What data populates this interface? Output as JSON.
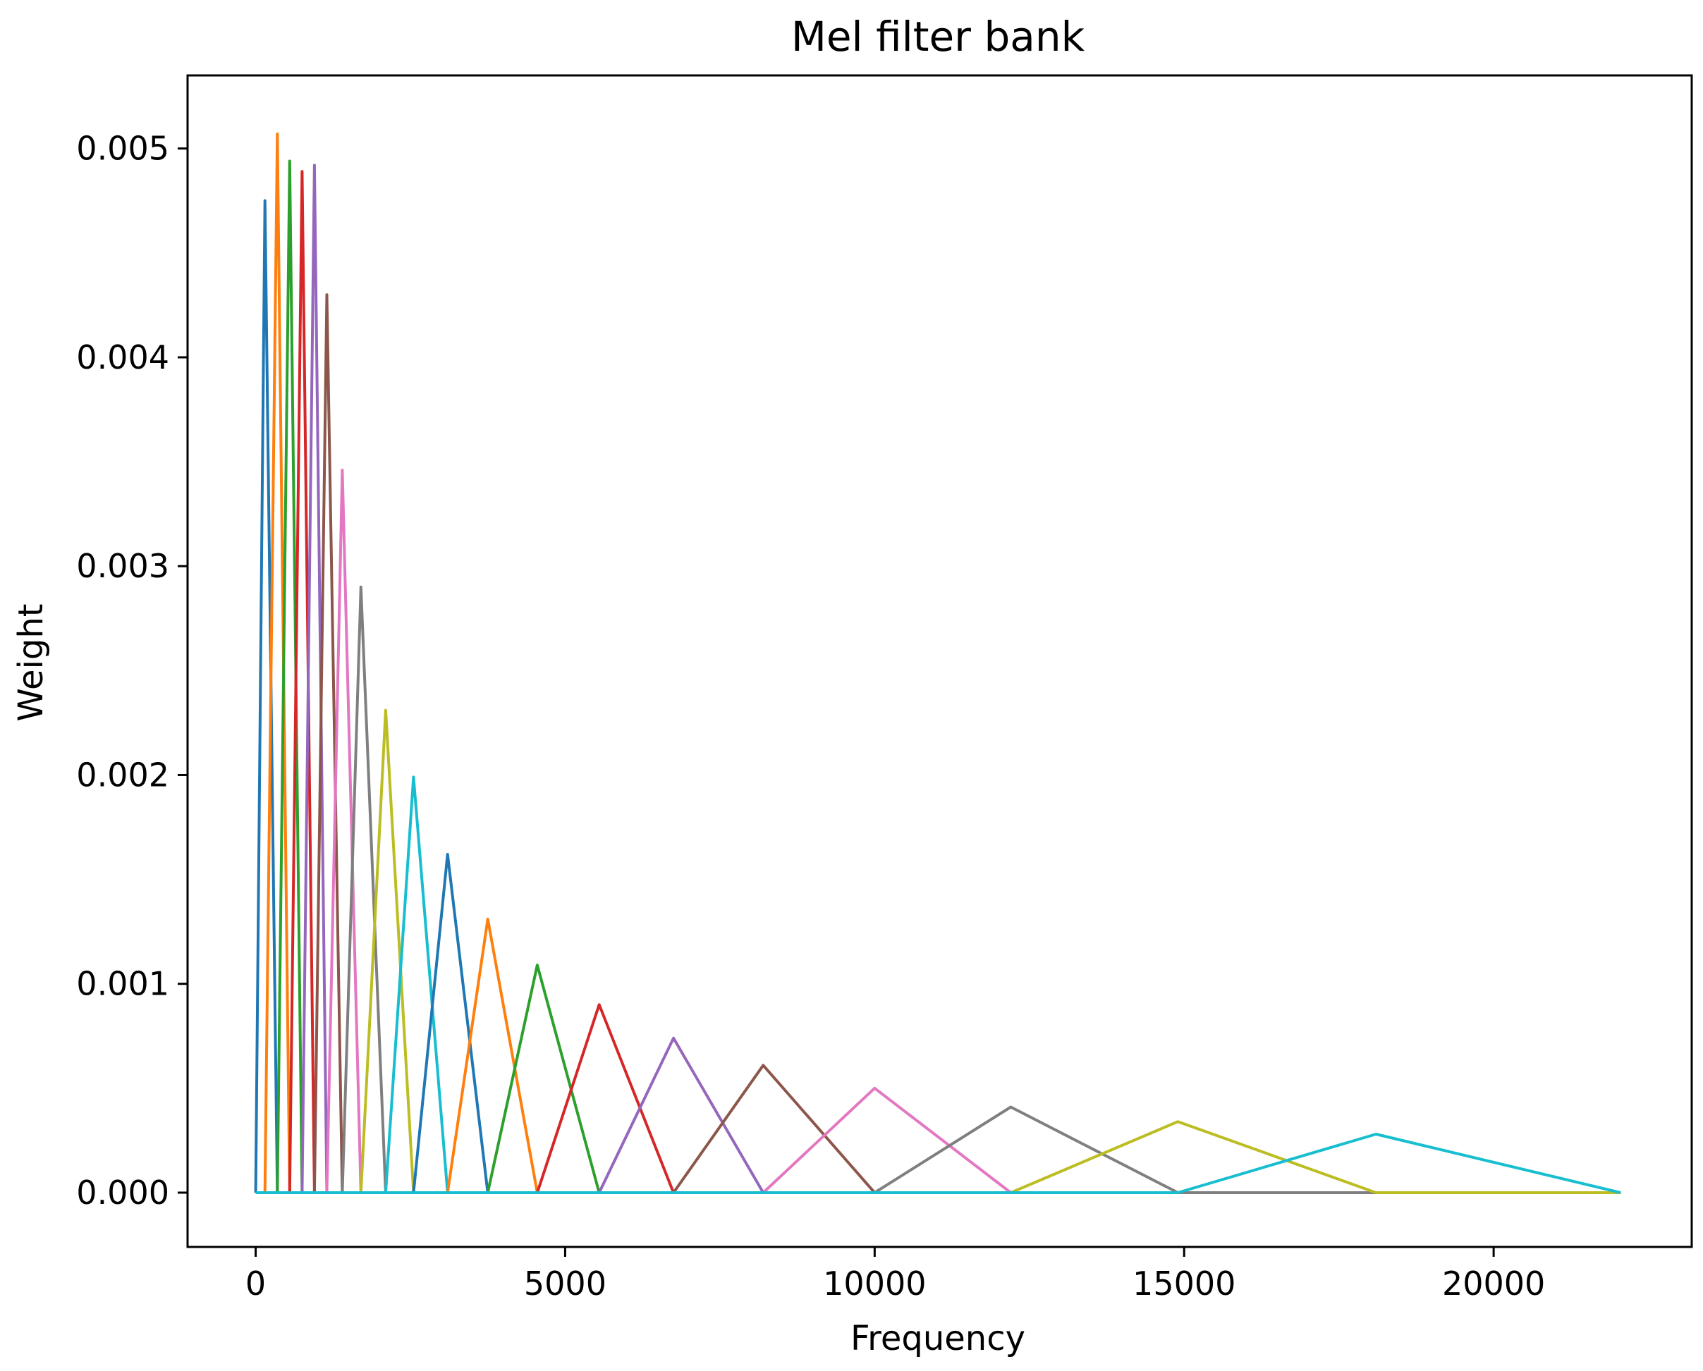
{
  "chart_data": {
    "type": "line",
    "title": "Mel filter bank",
    "xlabel": "Frequency",
    "ylabel": "Weight",
    "xlim": [
      -1100,
      23200
    ],
    "ylim": [
      -0.00026,
      0.00535
    ],
    "grid": false,
    "legend": "none",
    "xticks": [
      {
        "value": 0,
        "label": "0"
      },
      {
        "value": 5000,
        "label": "5000"
      },
      {
        "value": 10000,
        "label": "10000"
      },
      {
        "value": 15000,
        "label": "15000"
      },
      {
        "value": 20000,
        "label": "20000"
      }
    ],
    "yticks": [
      {
        "value": 0,
        "label": "0.000"
      },
      {
        "value": 0.001,
        "label": "0.001"
      },
      {
        "value": 0.002,
        "label": "0.002"
      },
      {
        "value": 0.003,
        "label": "0.003"
      },
      {
        "value": 0.004,
        "label": "0.004"
      },
      {
        "value": 0.005,
        "label": "0.005"
      }
    ],
    "x_range": [
      0,
      22050
    ],
    "filters": [
      {
        "color": "#1f77b4",
        "start": 0,
        "peak": 150,
        "end": 350,
        "height": 0.00475
      },
      {
        "color": "#ff7f0e",
        "start": 150,
        "peak": 350,
        "end": 550,
        "height": 0.00507
      },
      {
        "color": "#2ca02c",
        "start": 350,
        "peak": 550,
        "end": 750,
        "height": 0.00494
      },
      {
        "color": "#d62728",
        "start": 550,
        "peak": 750,
        "end": 950,
        "height": 0.00489
      },
      {
        "color": "#9467bd",
        "start": 750,
        "peak": 950,
        "end": 1150,
        "height": 0.00492
      },
      {
        "color": "#8c564b",
        "start": 950,
        "peak": 1150,
        "end": 1400,
        "height": 0.0043
      },
      {
        "color": "#e377c2",
        "start": 1150,
        "peak": 1400,
        "end": 1700,
        "height": 0.00346
      },
      {
        "color": "#7f7f7f",
        "start": 1400,
        "peak": 1700,
        "end": 2100,
        "height": 0.0029
      },
      {
        "color": "#bcbd22",
        "start": 1700,
        "peak": 2100,
        "end": 2550,
        "height": 0.00231
      },
      {
        "color": "#17becf",
        "start": 2100,
        "peak": 2550,
        "end": 3100,
        "height": 0.00199
      },
      {
        "color": "#1f77b4",
        "start": 2550,
        "peak": 3100,
        "end": 3750,
        "height": 0.00162
      },
      {
        "color": "#ff7f0e",
        "start": 3100,
        "peak": 3750,
        "end": 4550,
        "height": 0.00131
      },
      {
        "color": "#2ca02c",
        "start": 3750,
        "peak": 4550,
        "end": 5550,
        "height": 0.00109
      },
      {
        "color": "#d62728",
        "start": 4550,
        "peak": 5550,
        "end": 6750,
        "height": 0.0009
      },
      {
        "color": "#9467bd",
        "start": 5550,
        "peak": 6750,
        "end": 8200,
        "height": 0.00074
      },
      {
        "color": "#8c564b",
        "start": 6750,
        "peak": 8200,
        "end": 10000,
        "height": 0.00061
      },
      {
        "color": "#e377c2",
        "start": 8200,
        "peak": 10000,
        "end": 12200,
        "height": 0.0005
      },
      {
        "color": "#7f7f7f",
        "start": 10000,
        "peak": 12200,
        "end": 14900,
        "height": 0.00041
      },
      {
        "color": "#bcbd22",
        "start": 12200,
        "peak": 14900,
        "end": 18100,
        "height": 0.00034
      },
      {
        "color": "#17becf",
        "start": 14900,
        "peak": 18100,
        "end": 22050,
        "height": 0.00028
      }
    ]
  }
}
